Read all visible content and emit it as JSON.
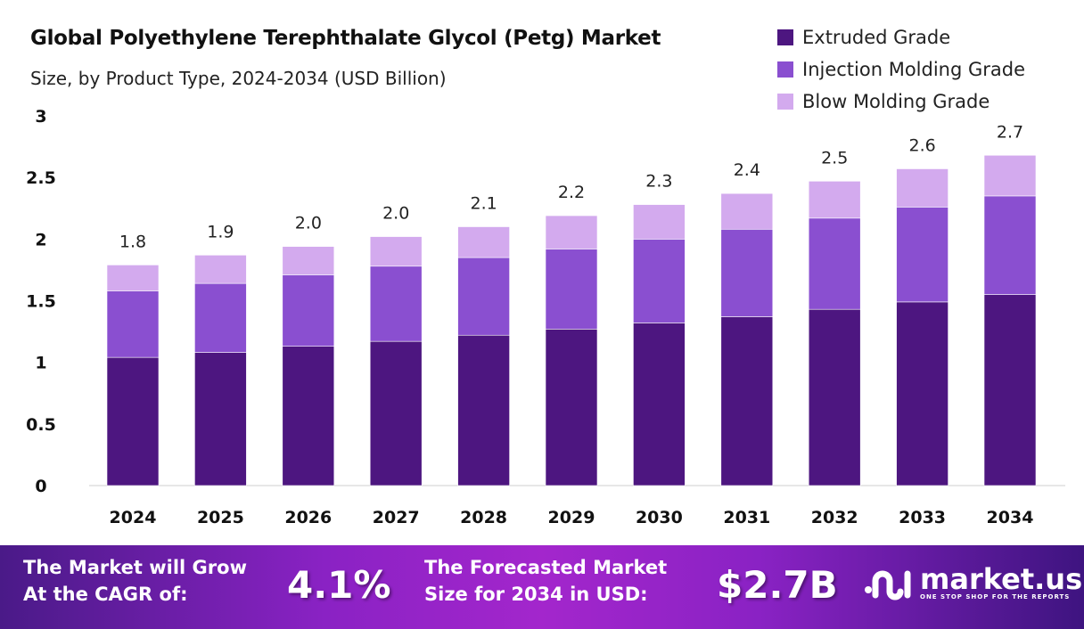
{
  "chart_data": {
    "type": "bar",
    "stacked": true,
    "title": "Global Polyethylene Terephthalate Glycol (Petg) Market",
    "subtitle": "Size, by Product Type, 2024-2034 (USD Billion)",
    "xlabel": "",
    "ylabel": "",
    "ylim": [
      0,
      3
    ],
    "yticks": [
      "0",
      "0.5",
      "1",
      "1.5",
      "2",
      "2.5",
      "3"
    ],
    "grid": false,
    "legend_position": "top-right",
    "categories": [
      "2024",
      "2025",
      "2026",
      "2027",
      "2028",
      "2029",
      "2030",
      "2031",
      "2032",
      "2033",
      "2034"
    ],
    "series": [
      {
        "name": "Extruded Grade",
        "color": "#4d1680",
        "values": [
          1.04,
          1.08,
          1.13,
          1.17,
          1.22,
          1.27,
          1.32,
          1.37,
          1.43,
          1.49,
          1.55
        ]
      },
      {
        "name": "Injection Molding Grade",
        "color": "#8a4fd0",
        "values": [
          0.54,
          0.56,
          0.58,
          0.61,
          0.63,
          0.65,
          0.68,
          0.71,
          0.74,
          0.77,
          0.8
        ]
      },
      {
        "name": "Blow Molding Grade",
        "color": "#d3aaee",
        "values": [
          0.21,
          0.23,
          0.23,
          0.24,
          0.25,
          0.27,
          0.28,
          0.29,
          0.3,
          0.31,
          0.33
        ]
      }
    ],
    "total_labels": [
      "1.8",
      "1.9",
      "2.0",
      "2.0",
      "2.1",
      "2.2",
      "2.3",
      "2.4",
      "2.5",
      "2.6",
      "2.7"
    ]
  },
  "banner": {
    "cagr_text_1": "The Market will Grow",
    "cagr_text_2": "At the CAGR of:",
    "cagr_value": "4.1%",
    "forecast_text_1": "The Forecasted Market",
    "forecast_text_2": "Size for 2034 in USD:",
    "forecast_value": "$2.7B",
    "logo_name": "market.us",
    "logo_tagline": "ONE STOP SHOP FOR THE REPORTS"
  }
}
